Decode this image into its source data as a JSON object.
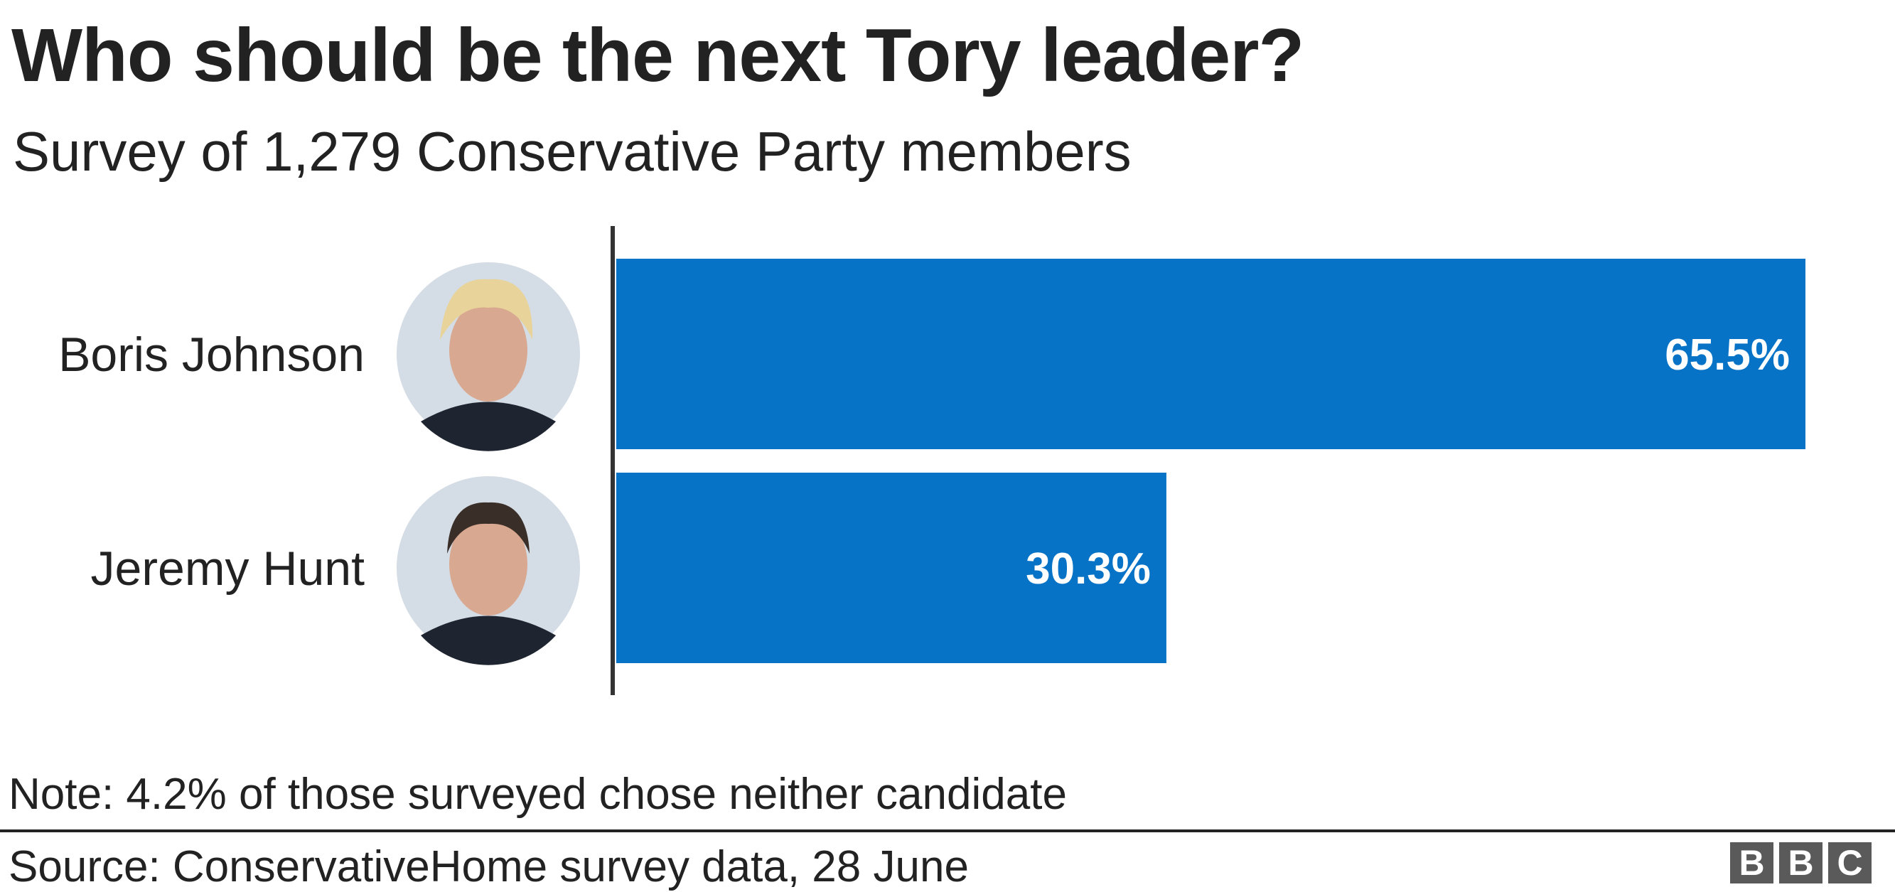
{
  "chart_data": {
    "type": "bar",
    "orientation": "horizontal",
    "title": "Who should be the next Tory leader?",
    "subtitle": "Survey of 1,279 Conservative Party members",
    "categories": [
      "Boris Johnson",
      "Jeremy Hunt"
    ],
    "values": [
      65.5,
      30.3
    ],
    "data_labels": [
      "65.5%",
      "30.3%"
    ],
    "xlim": [
      0,
      65.5
    ],
    "xlabel": "",
    "ylabel": "",
    "grid": false,
    "bar_color": "#0673c6"
  },
  "footer": {
    "note": "Note: 4.2% of those surveyed chose neither candidate",
    "source": "Source: ConservativeHome survey data, 28 June",
    "logo": [
      "B",
      "B",
      "C"
    ]
  }
}
